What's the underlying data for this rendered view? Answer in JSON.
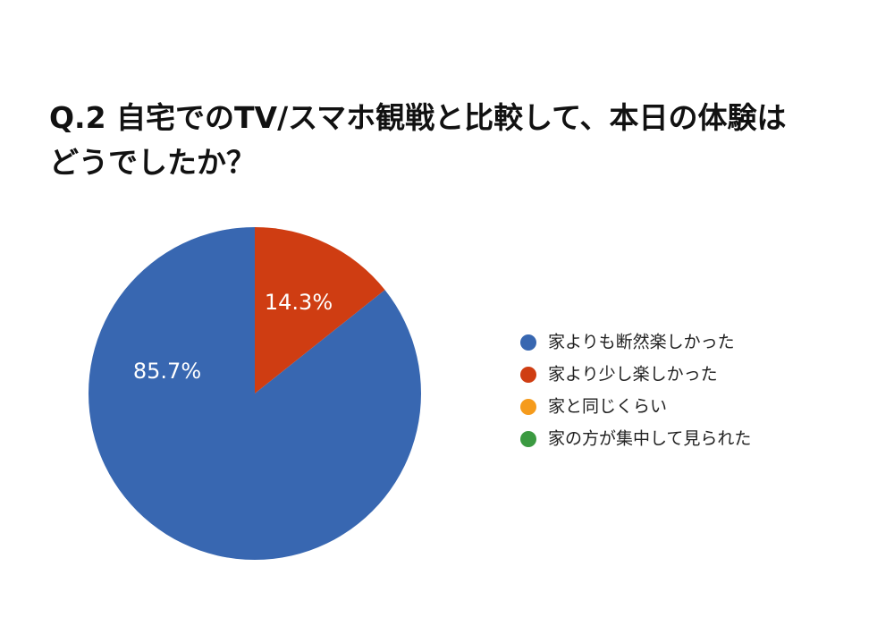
{
  "chart_data": {
    "type": "pie",
    "title": [
      "Q.2 自宅でのTV/スマホ観戦と比較して、本日の体験は",
      "どうでしたか？"
    ],
    "categories": [
      "家よりも断然楽しかった",
      "家より少し楽しかった",
      "家と同じくらい",
      "家の方が集中して見られた"
    ],
    "values": [
      85.7,
      14.3,
      0,
      0
    ],
    "value_labels": [
      "85.7%",
      "14.3%",
      null,
      null
    ],
    "colors": [
      "#3867b1",
      "#cf3d12",
      "#f59b1c",
      "#3b9a41"
    ],
    "legend": "right"
  }
}
